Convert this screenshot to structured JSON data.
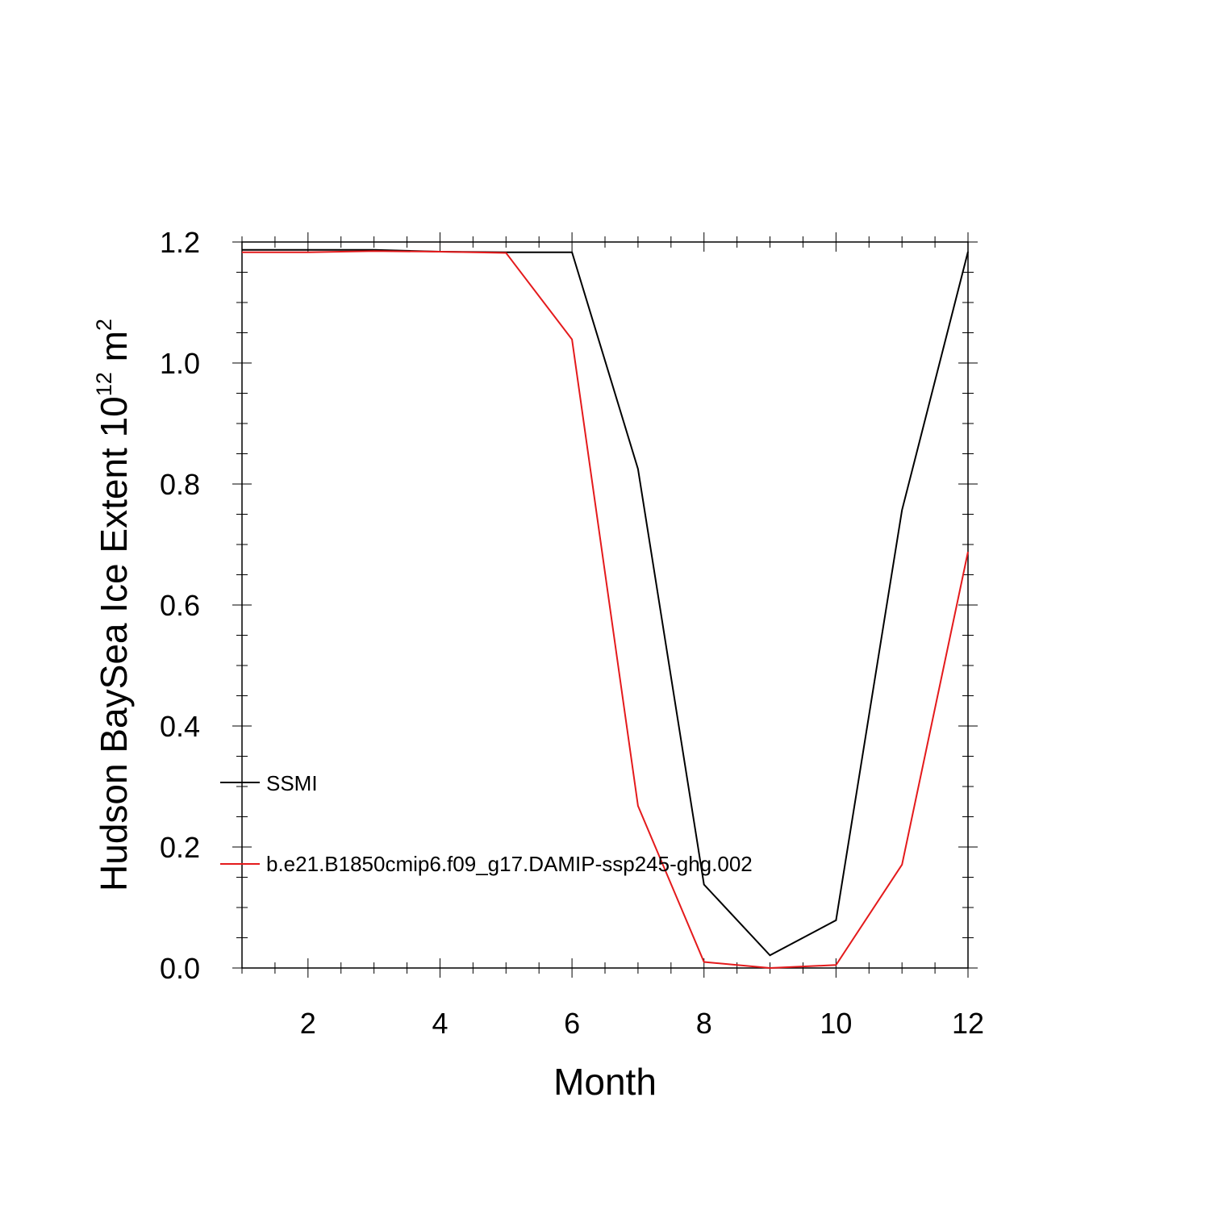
{
  "chart_data": {
    "type": "line",
    "title": "",
    "xlabel": "Month",
    "ylabel": {
      "main": "Hudson BaySea Ice Extent 10",
      "exp": "12",
      "unit": " m",
      "unit_exp": "2"
    },
    "xlim": [
      1,
      12
    ],
    "ylim": [
      0.0,
      1.2
    ],
    "x_major_ticks": [
      2,
      4,
      6,
      8,
      10,
      12
    ],
    "x_minor_step": 0.5,
    "y_major_ticks": [
      0.0,
      0.2,
      0.4,
      0.6,
      0.8,
      1.0,
      1.2
    ],
    "y_tick_labels": [
      "0.0",
      "0.2",
      "0.4",
      "0.6",
      "0.8",
      "1.0",
      "1.2"
    ],
    "y_minor_step": 0.05,
    "grid": false,
    "legend_placement": "lower-left inside",
    "x": [
      1,
      2,
      3,
      4,
      5,
      6,
      7,
      8,
      9,
      10,
      11,
      12
    ],
    "series": [
      {
        "name": "SSMI",
        "color": "#000000",
        "values": [
          1.187,
          1.187,
          1.187,
          1.184,
          1.183,
          1.183,
          0.825,
          0.138,
          0.021,
          0.079,
          0.757,
          1.184
        ]
      },
      {
        "name": "b.e21.B1850cmip6.f09_g17.DAMIP-ssp245-ghg.002",
        "color": "#e41a1c",
        "values": [
          1.183,
          1.183,
          1.185,
          1.184,
          1.182,
          1.039,
          0.268,
          0.01,
          0.0,
          0.005,
          0.171,
          0.688
        ]
      }
    ]
  }
}
